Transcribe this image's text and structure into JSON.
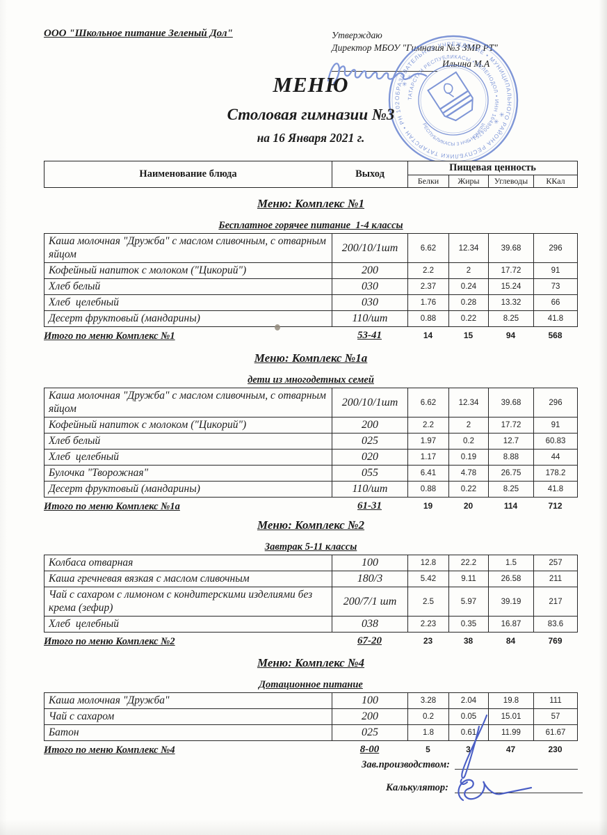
{
  "header": {
    "org_name": "ООО \"Школьное питание Зеленый Дол\"",
    "approve_label": "Утверждаю",
    "approve_director": "Директор МБОУ \"Гимназия №3 ЗМР РТ\"",
    "approver_name": "Ильина М.А",
    "title": "МЕНЮ",
    "subtitle": "Столовая гимназии №3",
    "date_line": "на 16 Января 2021 г."
  },
  "table_header": {
    "dish_column": "Наименование блюда",
    "output_column": "Выход",
    "nutrition_group": "Пищевая ценность",
    "sub_columns": [
      "Белки",
      "Жиры",
      "Углеводы",
      "ККал"
    ]
  },
  "sections": [
    {
      "title": "Меню: Комплекс №1",
      "subtitle": "Бесплатное горячее питание  1-4 классы",
      "rows": [
        {
          "dish": "Каша молочная \"Дружба\" с маслом сливочным, с отварным яйцом",
          "out": "200/10/1шт",
          "protein": "6.62",
          "fat": "12.34",
          "carbs": "39.68",
          "kcal": "296"
        },
        {
          "dish": "Кофейный напиток с молоком (\"Цикорий\")",
          "out": "200",
          "protein": "2.2",
          "fat": "2",
          "carbs": "17.72",
          "kcal": "91"
        },
        {
          "dish": "Хлеб белый",
          "out": "030",
          "protein": "2.37",
          "fat": "0.24",
          "carbs": "15.24",
          "kcal": "73"
        },
        {
          "dish": "Хлеб  целебный",
          "out": "030",
          "protein": "1.76",
          "fat": "0.28",
          "carbs": "13.32",
          "kcal": "66"
        },
        {
          "dish": "Десерт фруктовый (мандарины)",
          "out": "110/шт",
          "protein": "0.88",
          "fat": "0.22",
          "carbs": "8.25",
          "kcal": "41.8"
        }
      ],
      "total": {
        "label": "Итого по меню Комплекс №1",
        "out": "53-41",
        "protein": "14",
        "fat": "15",
        "carbs": "94",
        "kcal": "568"
      }
    },
    {
      "title": "Меню: Комплекс №1а",
      "subtitle": "дети из многодетных семей",
      "rows": [
        {
          "dish": "Каша молочная \"Дружба\" с маслом сливочным, с отварным яйцом",
          "out": "200/10/1шт",
          "protein": "6.62",
          "fat": "12.34",
          "carbs": "39.68",
          "kcal": "296"
        },
        {
          "dish": "Кофейный напиток с молоком (\"Цикорий\")",
          "out": "200",
          "protein": "2.2",
          "fat": "2",
          "carbs": "17.72",
          "kcal": "91"
        },
        {
          "dish": "Хлеб белый",
          "out": "025",
          "protein": "1.97",
          "fat": "0.2",
          "carbs": "12.7",
          "kcal": "60.83"
        },
        {
          "dish": "Хлеб  целебный",
          "out": "020",
          "protein": "1.17",
          "fat": "0.19",
          "carbs": "8.88",
          "kcal": "44"
        },
        {
          "dish": "Булочка \"Творожная\"",
          "out": "055",
          "protein": "6.41",
          "fat": "4.78",
          "carbs": "26.75",
          "kcal": "178.2"
        },
        {
          "dish": "Десерт фруктовый (мандарины)",
          "out": "110/шт",
          "protein": "0.88",
          "fat": "0.22",
          "carbs": "8.25",
          "kcal": "41.8"
        }
      ],
      "total": {
        "label": "Итого по меню Комплекс №1а",
        "out": "61-31",
        "protein": "19",
        "fat": "20",
        "carbs": "114",
        "kcal": "712"
      }
    },
    {
      "title": "Меню: Комплекс №2",
      "subtitle": "Завтрак 5-11 классы",
      "rows": [
        {
          "dish": "Колбаса отварная",
          "out": "100",
          "protein": "12.8",
          "fat": "22.2",
          "carbs": "1.5",
          "kcal": "257"
        },
        {
          "dish": "Каша гречневая вязкая с маслом сливочным",
          "out": "180/3",
          "protein": "5.42",
          "fat": "9.11",
          "carbs": "26.58",
          "kcal": "211"
        },
        {
          "dish": "Чай с сахаром с лимоном с кондитерскими изделиями без крема (зефир)",
          "out": "200/7/1 шт",
          "protein": "2.5",
          "fat": "5.97",
          "carbs": "39.19",
          "kcal": "217"
        },
        {
          "dish": "Хлеб  целебный",
          "out": "038",
          "protein": "2.23",
          "fat": "0.35",
          "carbs": "16.87",
          "kcal": "83.6"
        }
      ],
      "total": {
        "label": "Итого по меню Комплекс №2",
        "out": "67-20",
        "protein": "23",
        "fat": "38",
        "carbs": "84",
        "kcal": "769"
      }
    },
    {
      "title": "Меню: Комплекс №4",
      "subtitle": "Дотационное питание",
      "rows": [
        {
          "dish": "Каша молочная \"Дружба\"",
          "out": "100",
          "protein": "3.28",
          "fat": "2.04",
          "carbs": "19.8",
          "kcal": "111"
        },
        {
          "dish": "Чай с сахаром",
          "out": "200",
          "protein": "0.2",
          "fat": "0.05",
          "carbs": "15.01",
          "kcal": "57"
        },
        {
          "dish": "Батон",
          "out": "025",
          "protein": "1.8",
          "fat": "0.61",
          "carbs": "11.99",
          "kcal": "61.67"
        }
      ],
      "total": {
        "label": "Итого по меню Комплекс №4",
        "out": "8-00",
        "protein": "5",
        "fat": "3",
        "carbs": "47",
        "kcal": "230"
      }
    }
  ],
  "footer": {
    "manager_label": "Зав.производством:",
    "calculator_label": "Калькулятор:"
  },
  "stamp": {
    "ring_outer": "ОБРАЗОВАТЕЛЬНОЕ УЧРЕЖДЕНИЕ  •  МУНИЦИПАЛЬНОГО РАЙОНА РЕСПУБЛИКИ ТАТАРСТАН  •  РН 1021 55257  •",
    "ring_inner": "ТАТАРСТАН РЕСПУБЛИКАСЫ  •  ЗЕЛЕНОДОЛ  •  ИНН 1648004751  •",
    "arc_bottom": "РЕСПУБЛИКАСЫ 3 НЧЕ НОМЕРЛЫ ГИМНАЗИЯ"
  },
  "colors": {
    "ink": "#1c1c1c",
    "stamp_blue": "#5b79cc",
    "signature_blue": "#4a5ec5",
    "signature_light_blue": "#7f96d8"
  }
}
